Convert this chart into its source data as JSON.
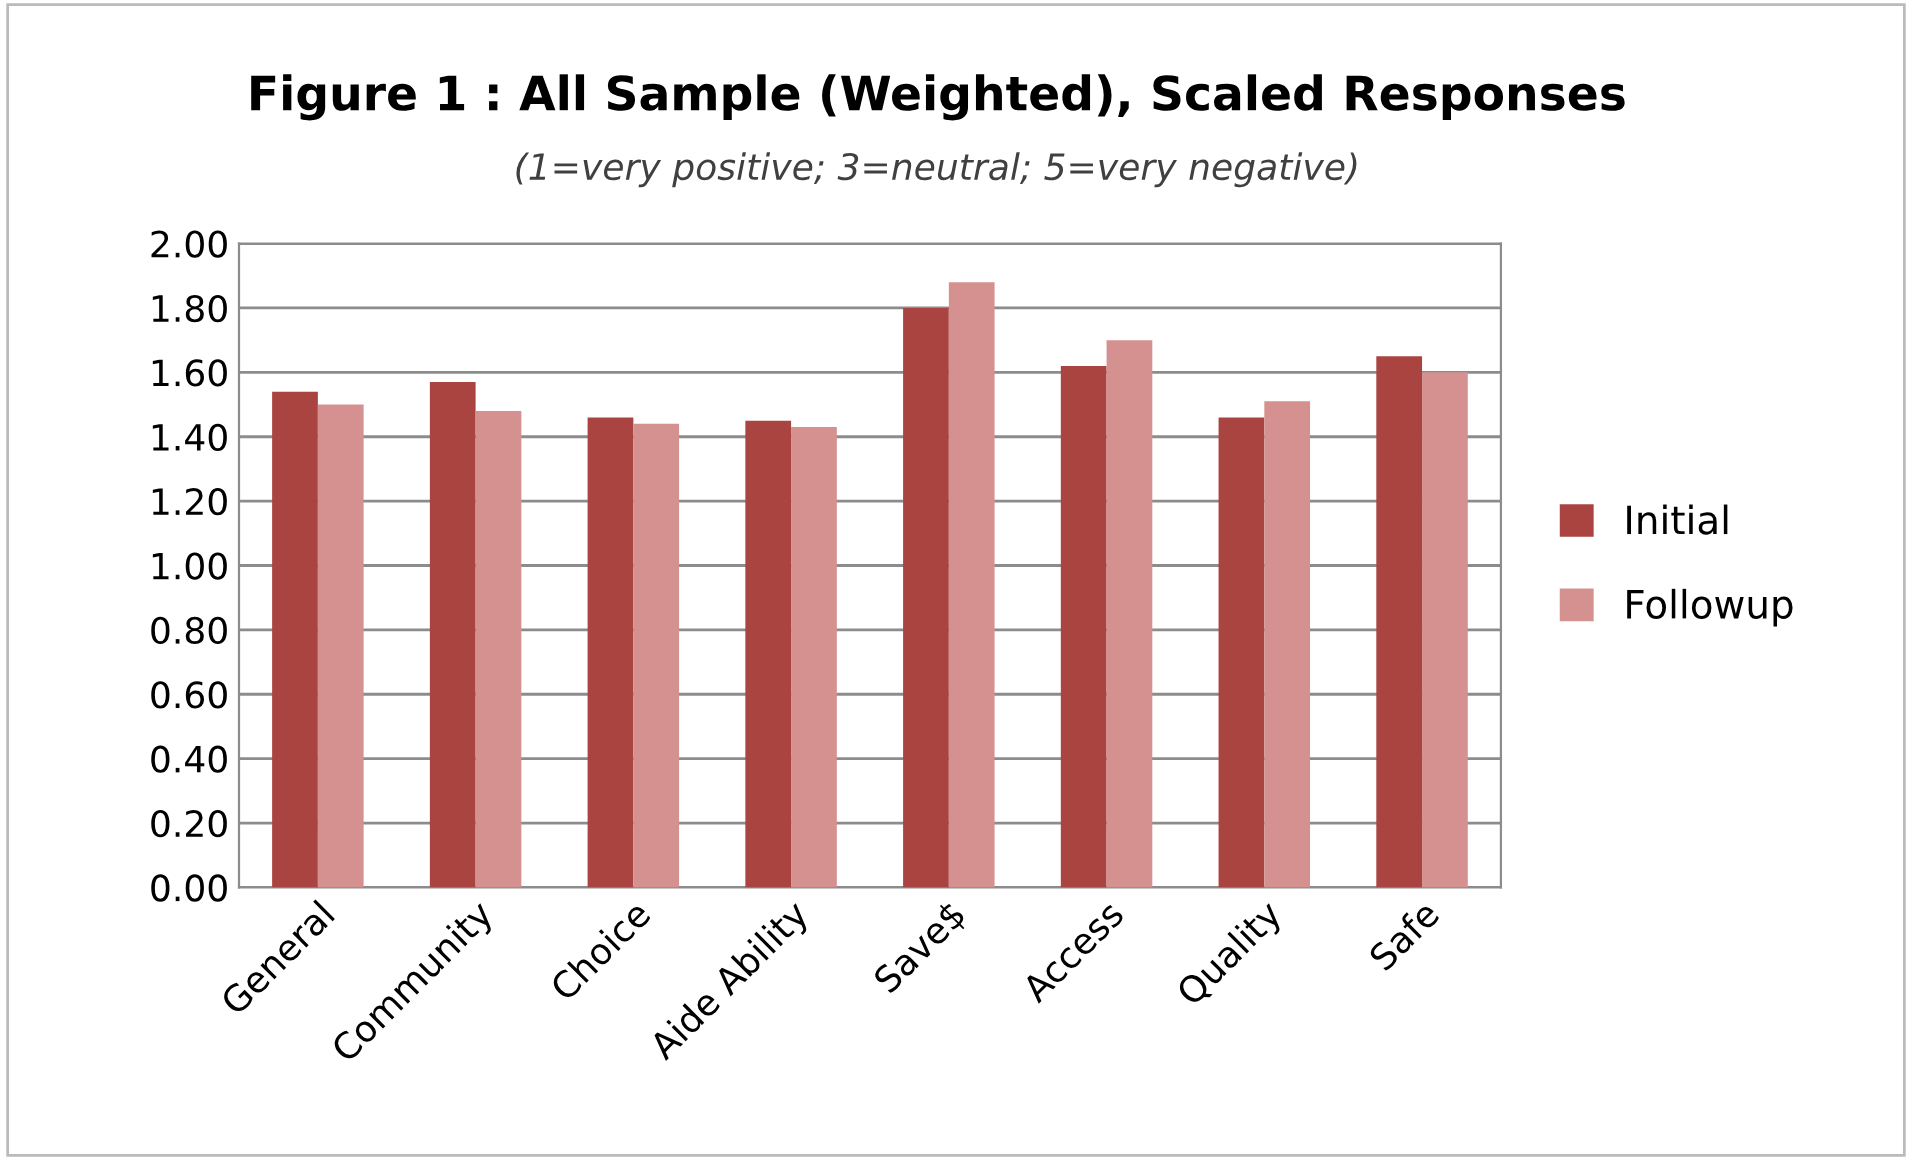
{
  "chart_data": {
    "type": "bar",
    "title": "Figure 1 : All Sample (Weighted), Scaled Responses",
    "subtitle": "(1=very positive; 3=neutral; 5=very negative)",
    "categories": [
      "General",
      "Community",
      "Choice",
      "Aide Ability",
      "Save$",
      "Access",
      "Quality",
      "Safe"
    ],
    "series": [
      {
        "name": "Initial",
        "color": "#aa4441",
        "values": [
          1.54,
          1.57,
          1.46,
          1.45,
          1.8,
          1.62,
          1.46,
          1.65
        ]
      },
      {
        "name": "Followup",
        "color": "#d4918f",
        "values": [
          1.5,
          1.48,
          1.44,
          1.43,
          1.88,
          1.7,
          1.51,
          1.6
        ]
      }
    ],
    "ylim": [
      0,
      2
    ],
    "yticks": [
      {
        "value": 0,
        "label": "0.00"
      },
      {
        "value": 0.2,
        "label": "0.20"
      },
      {
        "value": 0.4,
        "label": "0.40"
      },
      {
        "value": 0.6,
        "label": "0.60"
      },
      {
        "value": 0.8,
        "label": "0.80"
      },
      {
        "value": 1,
        "label": "1.00"
      },
      {
        "value": 1.2,
        "label": "1.20"
      },
      {
        "value": 1.4,
        "label": "1.40"
      },
      {
        "value": 1.6,
        "label": "1.60"
      },
      {
        "value": 1.8,
        "label": "1.80"
      },
      {
        "value": 2,
        "label": "2.00"
      }
    ],
    "grid": "y",
    "legend": "right"
  }
}
